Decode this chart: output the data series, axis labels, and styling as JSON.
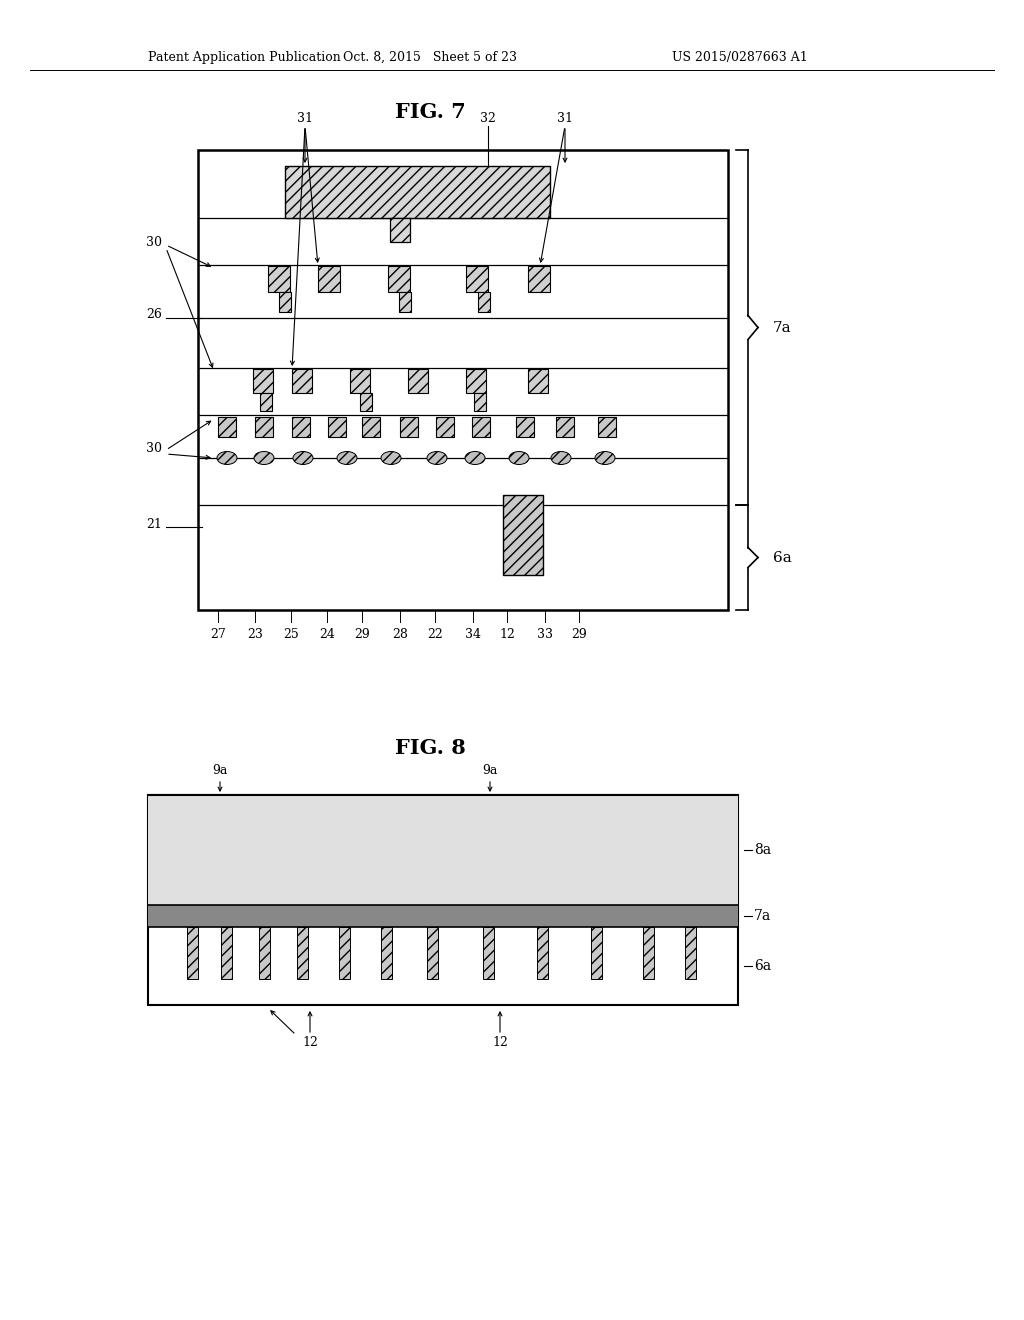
{
  "bg_color": "#ffffff",
  "header_left": "Patent Application Publication",
  "header_mid": "Oct. 8, 2015   Sheet 5 of 23",
  "header_right": "US 2015/0287663 A1",
  "fig7_title": "FIG. 7",
  "fig8_title": "FIG. 8"
}
